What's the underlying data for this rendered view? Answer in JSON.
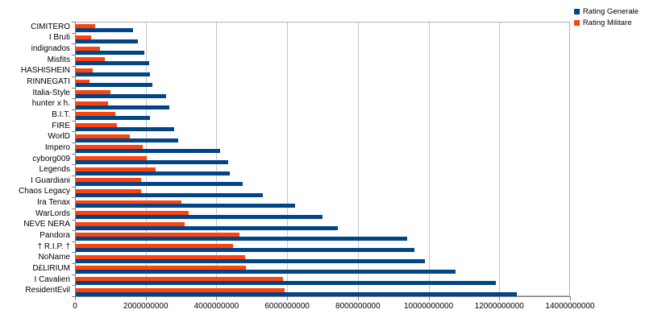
{
  "chart_data": {
    "type": "bar",
    "orientation": "horizontal",
    "title": "",
    "xlabel": "",
    "ylabel": "",
    "categories": [
      "CIMITERO",
      "I Bruti",
      "indignados",
      "Misfits",
      "HASHISHEIN",
      "RINNEGATI",
      "Italia-Style",
      "hunter x h.",
      "B.I.T.",
      "FIRE",
      "WorlD",
      "Impero",
      "cyborg009",
      "Legends",
      "I Guardiani",
      "Chaos Legacy",
      "Ira Tenax",
      "WarLords",
      "NEVE NERA",
      "Pandora",
      "† R.I.P. †",
      "NoName",
      "D£LIRIUM",
      "I Cavalieri",
      "ResidentEvil"
    ],
    "series": [
      {
        "name": "Rating Generale",
        "color": "#004586",
        "values": [
          1630000000,
          1760000000,
          1930000000,
          2070000000,
          2100000000,
          2160000000,
          2560000000,
          2640000000,
          2100000000,
          2790000000,
          2890000000,
          4080000000,
          4300000000,
          4350000000,
          4730000000,
          5280000000,
          6200000000,
          6980000000,
          7420000000,
          9380000000,
          9580000000,
          9870000000,
          10750000000,
          11870000000,
          12470000000
        ]
      },
      {
        "name": "Rating Militare",
        "color": "#FF420E",
        "values": [
          540000000,
          430000000,
          680000000,
          820000000,
          490000000,
          390000000,
          970000000,
          910000000,
          1120000000,
          1160000000,
          1530000000,
          1900000000,
          2000000000,
          2250000000,
          1850000000,
          1850000000,
          2990000000,
          3190000000,
          3080000000,
          4640000000,
          4450000000,
          4780000000,
          4800000000,
          5860000000,
          5900000000
        ]
      }
    ],
    "bar_order_top_to_bottom_in_group": [
      "Rating Militare",
      "Rating Generale"
    ],
    "xlim": [
      0,
      14000000000
    ],
    "x_tick_step": 2000000000,
    "x_tick_labels": [
      "0",
      "2000000000",
      "4000000000",
      "6000000000",
      "8000000000",
      "10000000000",
      "12000000000",
      "14000000000"
    ],
    "grid": "vertical-major",
    "legend_position": "top-right",
    "colors": {
      "grid": "#c6c6c6",
      "axis": "#808080",
      "plot_border": "#b3b3b3",
      "text": "#000000",
      "background": "#ffffff"
    }
  }
}
